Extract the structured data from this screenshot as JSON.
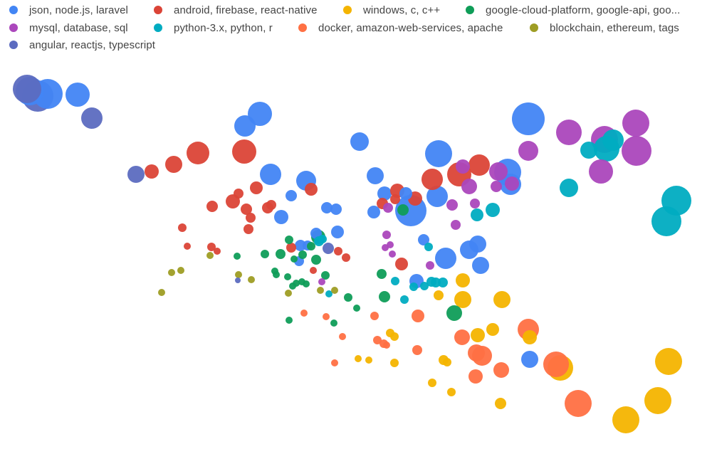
{
  "chart_data": {
    "type": "scatter",
    "title": "",
    "xlabel": "",
    "ylabel": "",
    "grid": false,
    "axes_visible": false,
    "legend_position": "top",
    "series": [
      {
        "name": "json, node.js, laravel",
        "color": "#4285f4",
        "points": [
          [
            42,
            128,
            20
          ],
          [
            67,
            132,
            21
          ],
          [
            109,
            133,
            17
          ],
          [
            365,
            160,
            17
          ],
          [
            344,
            177,
            15
          ],
          [
            742,
            167,
            23
          ],
          [
            505,
            199,
            13
          ],
          [
            616,
            216,
            19
          ],
          [
            380,
            245,
            15
          ],
          [
            430,
            254,
            14
          ],
          [
            527,
            247,
            12
          ],
          [
            713,
            242,
            19
          ],
          [
            717,
            259,
            15
          ],
          [
            577,
            296,
            22
          ],
          [
            614,
            276,
            15
          ],
          [
            540,
            272,
            10
          ],
          [
            570,
            272,
            9
          ],
          [
            525,
            298,
            9
          ],
          [
            409,
            275,
            8
          ],
          [
            459,
            292,
            8
          ],
          [
            472,
            294,
            8
          ],
          [
            395,
            305,
            10
          ],
          [
            444,
            328,
            8
          ],
          [
            474,
            326,
            9
          ],
          [
            422,
            345,
            8
          ],
          [
            432,
            345,
            7
          ],
          [
            626,
            363,
            15
          ],
          [
            659,
            351,
            13
          ],
          [
            671,
            343,
            12
          ],
          [
            675,
            373,
            12
          ],
          [
            420,
            367,
            7
          ],
          [
            595,
            337,
            8
          ],
          [
            585,
            395,
            10
          ],
          [
            744,
            505,
            12
          ]
        ]
      },
      {
        "name": "android, firebase, react-native",
        "color": "#db4437",
        "points": [
          [
            278,
            215,
            16
          ],
          [
            343,
            213,
            17
          ],
          [
            244,
            231,
            12
          ],
          [
            213,
            241,
            10
          ],
          [
            607,
            252,
            15
          ],
          [
            645,
            245,
            17
          ],
          [
            673,
            232,
            15
          ],
          [
            558,
            268,
            10
          ],
          [
            583,
            279,
            10
          ],
          [
            555,
            280,
            7
          ],
          [
            537,
            286,
            8
          ],
          [
            360,
            264,
            9
          ],
          [
            437,
            266,
            9
          ],
          [
            335,
            272,
            7
          ],
          [
            327,
            283,
            10
          ],
          [
            298,
            290,
            8
          ],
          [
            346,
            294,
            8
          ],
          [
            376,
            292,
            8
          ],
          [
            381,
            288,
            7
          ],
          [
            352,
            306,
            7
          ],
          [
            349,
            322,
            7
          ],
          [
            256,
            320,
            6
          ],
          [
            263,
            346,
            5
          ],
          [
            297,
            347,
            6
          ],
          [
            305,
            353,
            5
          ],
          [
            409,
            348,
            7
          ],
          [
            475,
            353,
            6
          ],
          [
            486,
            362,
            6
          ],
          [
            564,
            371,
            9
          ],
          [
            440,
            380,
            5
          ]
        ]
      },
      {
        "name": "windows, c, c++",
        "color": "#f4b400",
        "points": [
          [
            650,
            394,
            10
          ],
          [
            650,
            421,
            12
          ],
          [
            705,
            421,
            12
          ],
          [
            616,
            415,
            7
          ],
          [
            692,
            463,
            9
          ],
          [
            671,
            471,
            10
          ],
          [
            744,
            474,
            10
          ],
          [
            548,
            468,
            6
          ],
          [
            554,
            473,
            6
          ],
          [
            623,
            506,
            7
          ],
          [
            628,
            509,
            6
          ],
          [
            607,
            538,
            6
          ],
          [
            634,
            551,
            6
          ],
          [
            503,
            504,
            5
          ],
          [
            518,
            506,
            5
          ],
          [
            554,
            510,
            6
          ],
          [
            787,
            517,
            18
          ],
          [
            939,
            508,
            19
          ],
          [
            924,
            563,
            19
          ],
          [
            879,
            590,
            19
          ],
          [
            703,
            567,
            8
          ]
        ]
      },
      {
        "name": "google-cloud-platform, google-api, goo...",
        "color": "#0f9d58",
        "points": [
          [
            566,
            295,
            8
          ],
          [
            406,
            337,
            6
          ],
          [
            447,
            333,
            10
          ],
          [
            394,
            357,
            7
          ],
          [
            437,
            346,
            6
          ],
          [
            372,
            357,
            6
          ],
          [
            333,
            360,
            5
          ],
          [
            444,
            365,
            7
          ],
          [
            425,
            358,
            6
          ],
          [
            413,
            364,
            5
          ],
          [
            386,
            381,
            5
          ],
          [
            388,
            386,
            5
          ],
          [
            404,
            389,
            5
          ],
          [
            457,
            387,
            6
          ],
          [
            424,
            396,
            5
          ],
          [
            411,
            402,
            5
          ],
          [
            416,
            398,
            5
          ],
          [
            430,
            399,
            5
          ],
          [
            536,
            385,
            7
          ],
          [
            540,
            417,
            8
          ],
          [
            489,
            418,
            6
          ],
          [
            501,
            433,
            5
          ],
          [
            638,
            440,
            11
          ],
          [
            406,
            450,
            5
          ],
          [
            469,
            454,
            5
          ]
        ]
      },
      {
        "name": "mysql, database, sql",
        "color": "#ab47bc",
        "points": [
          [
            799,
            186,
            18
          ],
          [
            893,
            173,
            19
          ],
          [
            849,
            196,
            19
          ],
          [
            894,
            212,
            21
          ],
          [
            742,
            212,
            14
          ],
          [
            844,
            241,
            17
          ],
          [
            700,
            241,
            13
          ],
          [
            719,
            258,
            10
          ],
          [
            697,
            262,
            8
          ],
          [
            659,
            262,
            11
          ],
          [
            650,
            234,
            10
          ],
          [
            635,
            288,
            8
          ],
          [
            667,
            286,
            7
          ],
          [
            545,
            292,
            7
          ],
          [
            543,
            330,
            6
          ],
          [
            640,
            316,
            7
          ],
          [
            548,
            344,
            5
          ],
          [
            541,
            348,
            5
          ],
          [
            551,
            357,
            5
          ],
          [
            604,
            373,
            6
          ],
          [
            452,
            396,
            5
          ]
        ]
      },
      {
        "name": "python-3.x, python, r",
        "color": "#00acc1",
        "points": [
          [
            827,
            211,
            12
          ],
          [
            852,
            209,
            18
          ],
          [
            861,
            197,
            15
          ],
          [
            950,
            282,
            21
          ],
          [
            936,
            311,
            21
          ],
          [
            799,
            264,
            13
          ],
          [
            692,
            295,
            10
          ],
          [
            670,
            302,
            9
          ],
          [
            602,
            347,
            6
          ],
          [
            581,
            403,
            6
          ],
          [
            596,
            402,
            6
          ],
          [
            622,
            397,
            7
          ],
          [
            606,
            396,
            7
          ],
          [
            612,
            397,
            7
          ],
          [
            555,
            395,
            6
          ],
          [
            568,
            421,
            6
          ],
          [
            462,
            413,
            5
          ],
          [
            448,
            339,
            7
          ],
          [
            453,
            336,
            6
          ]
        ]
      },
      {
        "name": "docker, amazon-web-services, apache",
        "color": "#ff7043",
        "points": [
          [
            587,
            444,
            9
          ],
          [
            526,
            444,
            6
          ],
          [
            427,
            440,
            5
          ],
          [
            458,
            445,
            5
          ],
          [
            481,
            473,
            5
          ],
          [
            530,
            478,
            6
          ],
          [
            539,
            483,
            6
          ],
          [
            543,
            485,
            5
          ],
          [
            586,
            492,
            7
          ],
          [
            470,
            510,
            5
          ],
          [
            649,
            474,
            11
          ],
          [
            742,
            463,
            15
          ],
          [
            669,
            496,
            12
          ],
          [
            677,
            500,
            14
          ],
          [
            781,
            512,
            18
          ],
          [
            704,
            520,
            11
          ],
          [
            668,
            529,
            10
          ],
          [
            812,
            567,
            19
          ]
        ]
      },
      {
        "name": "blockchain, ethereum, tags",
        "color": "#9e9d24",
        "points": [
          [
            295,
            359,
            5
          ],
          [
            241,
            383,
            5
          ],
          [
            254,
            380,
            5
          ],
          [
            335,
            386,
            5
          ],
          [
            353,
            393,
            5
          ],
          [
            227,
            411,
            5
          ],
          [
            405,
            412,
            5
          ],
          [
            450,
            408,
            5
          ],
          [
            470,
            408,
            5
          ]
        ]
      },
      {
        "name": "angular, reactjs, typescript",
        "color": "#5c6bc0",
        "points": [
          [
            38,
            125,
            20
          ],
          [
            53,
            135,
            22
          ],
          [
            129,
            166,
            15
          ],
          [
            191,
            245,
            12
          ],
          [
            461,
            349,
            8
          ],
          [
            334,
            394,
            4
          ]
        ]
      }
    ]
  }
}
